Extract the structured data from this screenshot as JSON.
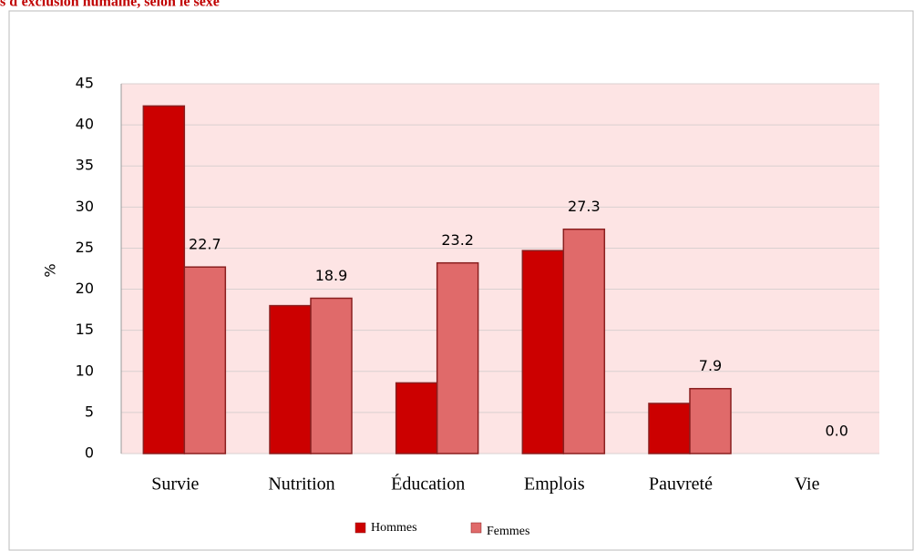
{
  "chart_data": {
    "type": "bar",
    "title": "s d'exclusion humaine, selon le sexe",
    "y_label": "%",
    "categories": [
      "Survie",
      "Nutrition",
      "Éducation",
      "Emplois",
      "Pauvreté",
      "Vie"
    ],
    "series": [
      {
        "name": "Hommes",
        "color": "#cc0000",
        "values": [
          42.3,
          18,
          8.6,
          24.7,
          6.1,
          0
        ]
      },
      {
        "name": "Femmes",
        "color": "#e06a6a",
        "values": [
          22.7,
          18.9,
          23.2,
          27.3,
          7.9,
          0.0
        ],
        "value_labels": [
          "22.7",
          "18.9",
          "23.2",
          "27.3",
          "7.9",
          "0.0"
        ]
      }
    ],
    "ylim": [
      0,
      45
    ],
    "yticks": [
      0,
      5,
      10,
      15,
      20,
      25,
      30,
      35,
      40,
      45
    ],
    "grid": true
  }
}
